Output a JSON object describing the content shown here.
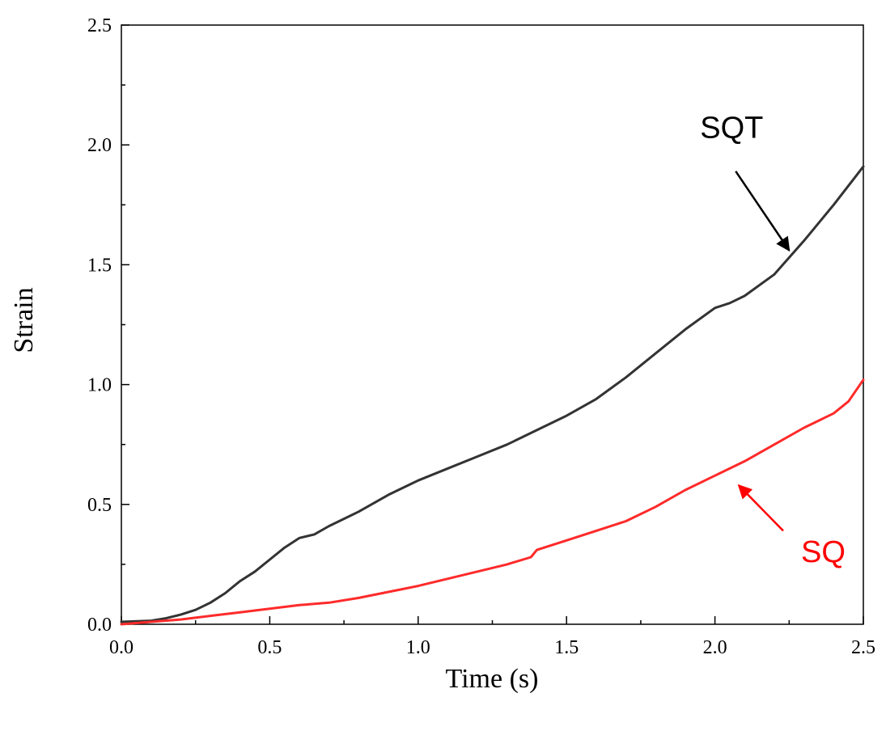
{
  "chart_data": {
    "type": "line",
    "title": "",
    "xlabel": "Time (s)",
    "ylabel": "Strain",
    "xlim": [
      0,
      2.5
    ],
    "ylim": [
      0,
      2.5
    ],
    "xticks": [
      "0.0",
      "0.5",
      "1.0",
      "1.5",
      "2.0",
      "2.5"
    ],
    "yticks": [
      "0.0",
      "0.5",
      "1.0",
      "1.5",
      "2.0",
      "2.5"
    ],
    "grid": false,
    "series": [
      {
        "name": "SQT",
        "color": "#333333",
        "x": [
          0.0,
          0.1,
          0.15,
          0.2,
          0.25,
          0.3,
          0.35,
          0.4,
          0.45,
          0.5,
          0.55,
          0.6,
          0.65,
          0.7,
          0.75,
          0.8,
          0.9,
          1.0,
          1.1,
          1.2,
          1.3,
          1.4,
          1.5,
          1.6,
          1.7,
          1.8,
          1.9,
          2.0,
          2.05,
          2.1,
          2.2,
          2.3,
          2.4,
          2.5
        ],
        "y": [
          0.01,
          0.015,
          0.025,
          0.04,
          0.06,
          0.09,
          0.13,
          0.18,
          0.22,
          0.27,
          0.32,
          0.36,
          0.375,
          0.41,
          0.44,
          0.47,
          0.54,
          0.6,
          0.65,
          0.7,
          0.75,
          0.81,
          0.87,
          0.94,
          1.03,
          1.13,
          1.23,
          1.32,
          1.34,
          1.37,
          1.46,
          1.6,
          1.75,
          1.91
        ]
      },
      {
        "name": "SQ",
        "color": "#ff2a2a",
        "x": [
          0.0,
          0.1,
          0.2,
          0.3,
          0.4,
          0.5,
          0.6,
          0.7,
          0.8,
          0.9,
          1.0,
          1.1,
          1.2,
          1.3,
          1.38,
          1.4,
          1.5,
          1.6,
          1.7,
          1.8,
          1.9,
          2.0,
          2.1,
          2.2,
          2.3,
          2.4,
          2.45,
          2.5
        ],
        "y": [
          0.0,
          0.01,
          0.02,
          0.035,
          0.05,
          0.065,
          0.08,
          0.09,
          0.11,
          0.135,
          0.16,
          0.19,
          0.22,
          0.25,
          0.28,
          0.31,
          0.35,
          0.39,
          0.43,
          0.49,
          0.56,
          0.62,
          0.68,
          0.75,
          0.82,
          0.88,
          0.93,
          1.02
        ]
      }
    ],
    "annotations": [
      {
        "text": "SQT",
        "color": "#000000",
        "target_series": "SQT",
        "from": [
          2.07,
          1.89
        ],
        "to": [
          2.25,
          1.56
        ],
        "label_at": [
          1.95,
          2.03
        ]
      },
      {
        "text": "SQ",
        "color": "#ff0000",
        "target_series": "SQ",
        "from": [
          2.23,
          0.39
        ],
        "to": [
          2.08,
          0.58
        ],
        "label_at": [
          2.29,
          0.26
        ]
      }
    ]
  }
}
